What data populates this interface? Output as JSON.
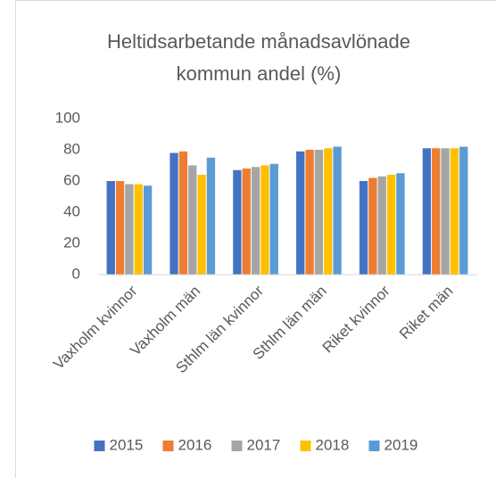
{
  "chart_data": {
    "type": "bar",
    "title_lines": [
      "Heltidsarbetande månadsavlönade",
      "kommun andel (%)"
    ],
    "categories": [
      "Vaxholm kvinnor",
      "Vaxholm män",
      "Sthlm län kvinnor",
      "Sthlm län män",
      "Riket kvinnor",
      "Riket män"
    ],
    "series": [
      {
        "name": "2015",
        "color": "#4472c4",
        "values": [
          60,
          78,
          67,
          79,
          60,
          81
        ]
      },
      {
        "name": "2016",
        "color": "#ed7d31",
        "values": [
          60,
          79,
          68,
          80,
          62,
          81
        ]
      },
      {
        "name": "2017",
        "color": "#a5a5a5",
        "values": [
          58,
          70,
          69,
          80,
          63,
          81
        ]
      },
      {
        "name": "2018",
        "color": "#ffc000",
        "values": [
          58,
          64,
          70,
          81,
          64,
          81
        ]
      },
      {
        "name": "2019",
        "color": "#5b9bd5",
        "values": [
          57,
          75,
          71,
          82,
          65,
          82
        ]
      }
    ],
    "ylim": [
      0,
      100
    ],
    "yticks": [
      0,
      20,
      40,
      60,
      80,
      100
    ],
    "grid": false,
    "legend": "bottom"
  }
}
